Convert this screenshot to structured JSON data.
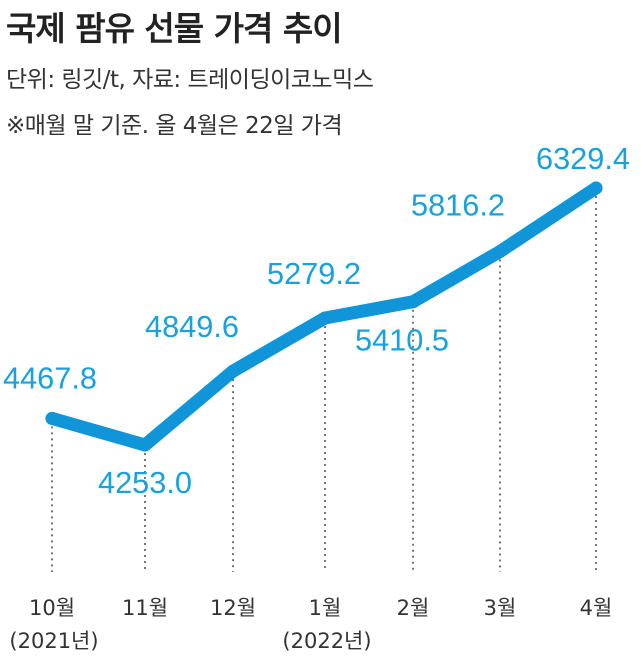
{
  "header": {
    "title": "국제 팜유 선물 가격 추이",
    "unit": "단위: 링깃/t, 자료: 트레이딩이코노믹스",
    "note": "※매월 말 기준. 올 4월은 22일 가격"
  },
  "colors": {
    "line": "#0f95d8",
    "value_label": "#1aa0dc",
    "dotted": "#555555"
  },
  "chart_data": {
    "type": "line",
    "categories": [
      "10월",
      "11월",
      "12월",
      "1월",
      "2월",
      "3월",
      "4월"
    ],
    "year_labels": [
      {
        "index": 0,
        "label": "(2021년)"
      },
      {
        "index": 3,
        "label": "(2022년)"
      }
    ],
    "values": [
      4467.8,
      4253.0,
      4849.6,
      5279.2,
      5410.5,
      5816.2,
      6329.4
    ],
    "data_labels": [
      "4467.8",
      "4253.0",
      "4849.6",
      "5279.2",
      "5410.5",
      "5816.2",
      "6329.4"
    ],
    "grid": false,
    "legend": "none"
  }
}
